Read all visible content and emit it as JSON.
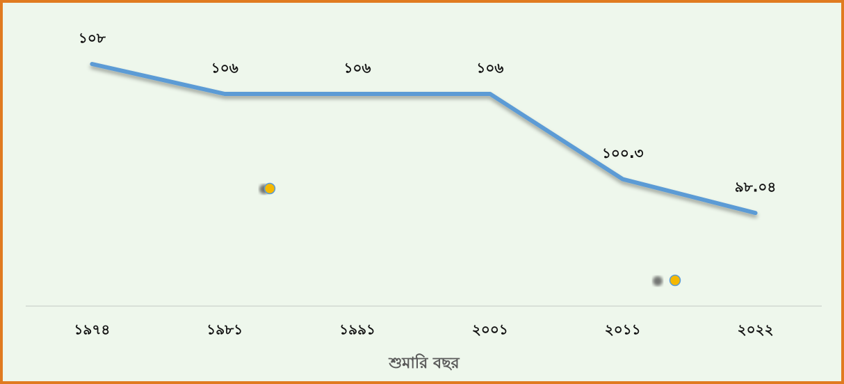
{
  "chart_data": {
    "type": "line",
    "categories": [
      "১৯৭৪",
      "১৯৮১",
      "১৯৯১",
      "২০০১",
      "২০১১",
      "২০২২"
    ],
    "values": [
      108,
      106,
      106,
      106,
      100.3,
      98.04
    ],
    "value_labels": [
      "১০৮",
      "১০৬",
      "১০৬",
      "১০৬",
      "১০০.৩",
      "৯৮.০৪"
    ],
    "color": "#5b9bd5",
    "xlabel": "শুমারি বছর",
    "ylim": [
      92,
      110
    ]
  }
}
